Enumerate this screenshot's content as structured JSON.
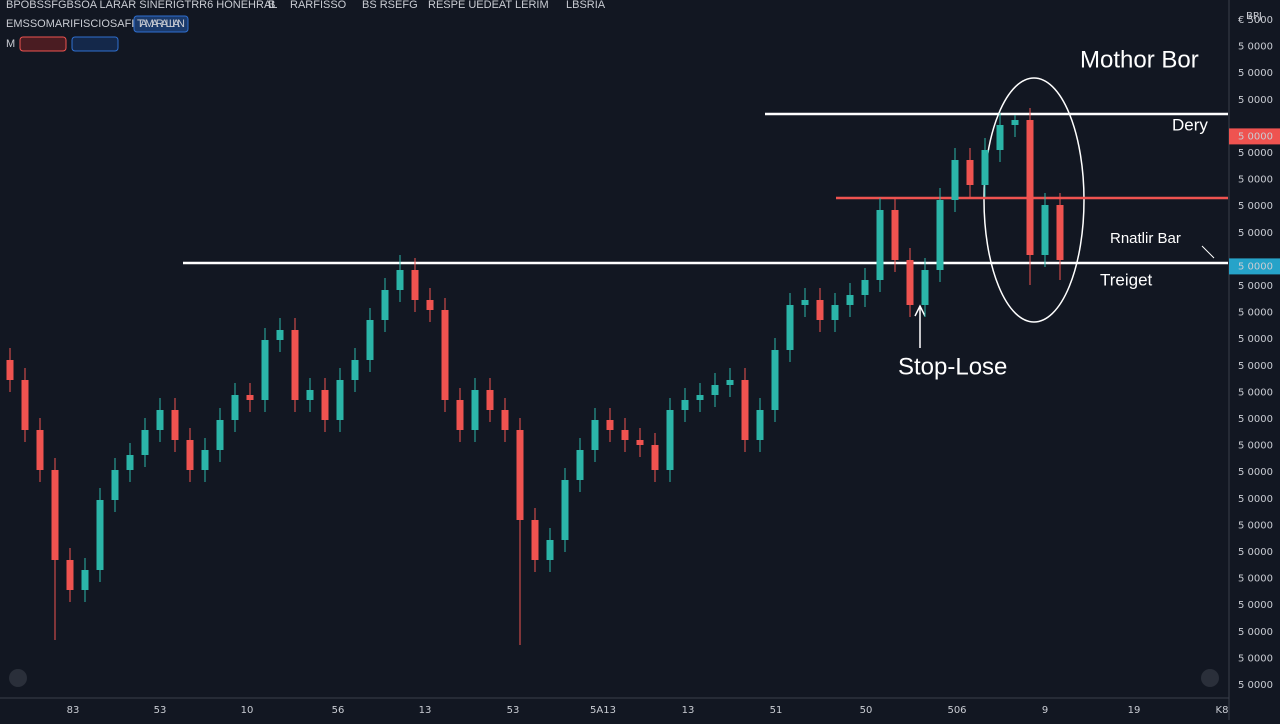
{
  "chart_data": {
    "type": "candlestick",
    "header": [
      "BPOBSSFGBSOA LARAR SINERIGTRR6 HONEHRAL",
      "B",
      "RARFISSO",
      "BS RSEFG",
      "RESPE UEDEAT LERIM",
      "LBSRIA"
    ],
    "subheader": "EMSSOMARIFISCIOSAFIC",
    "subheader_button": "TAMARALLIAN",
    "indicator": "M",
    "ylim": [
      0,
      700
    ],
    "up_color": "#2bb5a8",
    "down_color": "#ef5350",
    "open": [
      340,
      320,
      270,
      230,
      140,
      110,
      130,
      200,
      230,
      245,
      270,
      290,
      260,
      230,
      250,
      280,
      305,
      300,
      360,
      370,
      300,
      310,
      280,
      320,
      340,
      380,
      410,
      430,
      400,
      390,
      300,
      270,
      310,
      290,
      270,
      180,
      140,
      160,
      220,
      250,
      280,
      270,
      260,
      255,
      230,
      290,
      300,
      305,
      315,
      320,
      260,
      290,
      350,
      395,
      400,
      380,
      395,
      405,
      420,
      490,
      440,
      395,
      430,
      500,
      540,
      515,
      550,
      575,
      580,
      445,
      495
    ],
    "high": [
      352,
      332,
      282,
      242,
      152,
      142,
      212,
      242,
      257,
      282,
      302,
      302,
      272,
      262,
      292,
      317,
      317,
      372,
      382,
      382,
      322,
      322,
      332,
      352,
      392,
      422,
      445,
      442,
      412,
      402,
      312,
      322,
      322,
      302,
      282,
      192,
      172,
      232,
      262,
      292,
      292,
      282,
      272,
      267,
      302,
      312,
      317,
      327,
      332,
      332,
      302,
      362,
      407,
      412,
      412,
      407,
      417,
      432,
      502,
      502,
      452,
      442,
      512,
      552,
      552,
      562,
      587,
      585,
      592,
      507,
      507
    ],
    "low": [
      308,
      258,
      218,
      60,
      98,
      98,
      118,
      188,
      218,
      233,
      258,
      248,
      218,
      218,
      238,
      268,
      288,
      288,
      348,
      288,
      288,
      268,
      268,
      308,
      328,
      368,
      398,
      388,
      378,
      288,
      258,
      258,
      278,
      258,
      55,
      128,
      128,
      148,
      208,
      238,
      258,
      248,
      243,
      218,
      218,
      278,
      288,
      293,
      303,
      248,
      248,
      278,
      338,
      383,
      368,
      368,
      383,
      393,
      408,
      428,
      383,
      383,
      418,
      488,
      503,
      503,
      538,
      563,
      415,
      433,
      420
    ],
    "close": [
      320,
      270,
      230,
      140,
      110,
      130,
      200,
      230,
      245,
      270,
      290,
      260,
      230,
      250,
      280,
      305,
      300,
      360,
      370,
      300,
      310,
      280,
      320,
      340,
      380,
      410,
      430,
      400,
      390,
      300,
      270,
      310,
      290,
      270,
      180,
      140,
      160,
      220,
      250,
      280,
      270,
      260,
      255,
      230,
      290,
      300,
      305,
      315,
      320,
      260,
      290,
      350,
      395,
      400,
      380,
      395,
      405,
      420,
      490,
      440,
      395,
      430,
      500,
      540,
      515,
      550,
      575,
      580,
      445,
      495,
      440
    ],
    "levels": [
      {
        "value": 586,
        "color": "#ffffff"
      },
      {
        "value": 502,
        "color": "#ef5350"
      },
      {
        "value": 437,
        "color": "#ffffff"
      }
    ],
    "annotations": [
      "Mothor Bor",
      "Dery",
      "Rnatlir Bar",
      "Treiget",
      "Stop-Lose"
    ],
    "price_axis_labels": [
      "€ 5000",
      "5 0000",
      "5 0000",
      "5 0000",
      "5 0000",
      "5 0000",
      "5 0000",
      "5 0000",
      "5 0000",
      "5 0000",
      "5 0000",
      "5 0000",
      "5 0000",
      "5 0000",
      "5 0000",
      "5 0000",
      "5 0000",
      "5 0000",
      "5 0000",
      "5 0000",
      "5 0000",
      "5 0000",
      "5 0000",
      "5 0000",
      "5 0000",
      "5 0000"
    ],
    "price_axis_top": "BPJ",
    "x_axis_labels": [
      "83",
      "53",
      "10",
      "56",
      "13",
      "53",
      "5A13",
      "13",
      "51",
      "50",
      "506",
      "9",
      "19",
      "K8"
    ]
  }
}
